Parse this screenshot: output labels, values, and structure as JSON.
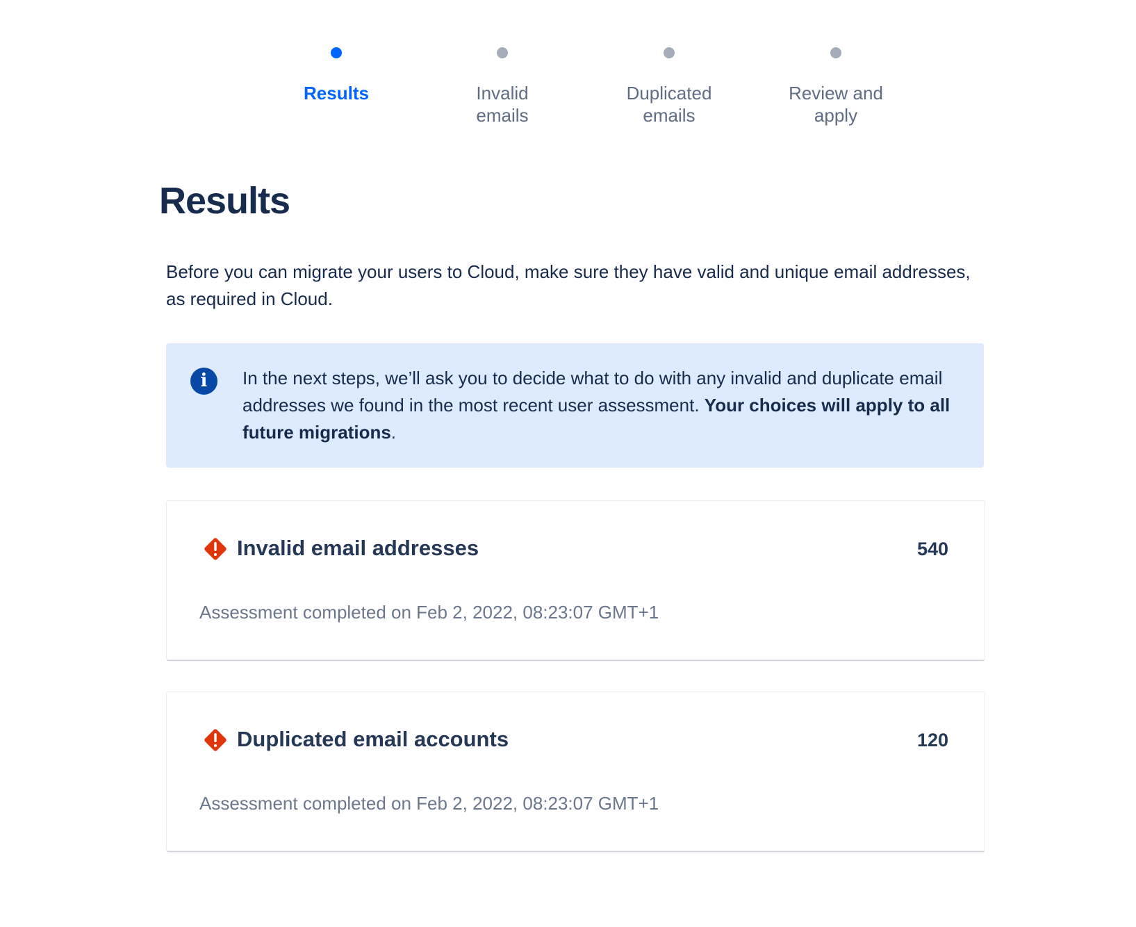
{
  "stepper": {
    "steps": [
      {
        "label_line1": "Results",
        "label_line2": "",
        "active": true
      },
      {
        "label_line1": "Invalid",
        "label_line2": "emails",
        "active": false
      },
      {
        "label_line1": "Duplicated",
        "label_line2": "emails",
        "active": false
      },
      {
        "label_line1": "Review and",
        "label_line2": "apply",
        "active": false
      }
    ],
    "active_color": "#0065ff",
    "inactive_color": "#a5adba"
  },
  "page_title": "Results",
  "intro": "Before you can migrate your users to Cloud, make sure they have valid and unique email addresses, as required in Cloud.",
  "info_panel": {
    "icon": "info-icon",
    "text": "In the next steps, we’ll ask you to decide what to do with any invalid and duplicate email addresses we found in the most recent user assessment. ",
    "bold_text": "Your choices will apply to all future migrations",
    "suffix": "."
  },
  "cards": [
    {
      "icon": "warning-icon",
      "title": "Invalid email addresses",
      "count": "540",
      "date": "Assessment completed on Feb 2, 2022, 08:23:07 GMT+1"
    },
    {
      "icon": "warning-icon",
      "title": "Duplicated email accounts",
      "count": "120",
      "date": "Assessment completed on Feb 2, 2022, 08:23:07 GMT+1"
    }
  ]
}
